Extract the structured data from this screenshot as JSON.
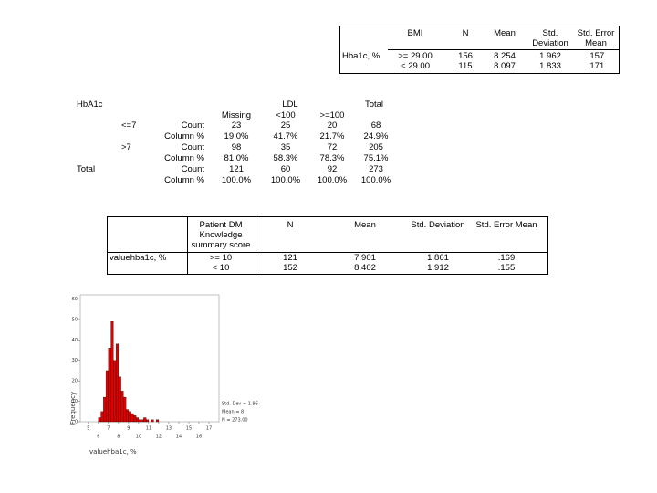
{
  "bmi_table": {
    "group_variable": "BMI",
    "row_label": "Hba1c, %",
    "columns": [
      "N",
      "Mean",
      "Std. Deviation",
      "Std. Error Mean"
    ],
    "rows": [
      {
        "group": ">= 29.00",
        "cells": [
          "156",
          "8.254",
          "1.962",
          ".157"
        ]
      },
      {
        "group": "< 29.00",
        "cells": [
          "115",
          "8.097",
          "1.833",
          ".171"
        ]
      }
    ]
  },
  "crosstab": {
    "row_variable": "HbA1c",
    "column_variable": "LDL",
    "columns": [
      "Missing",
      "<100",
      ">=100"
    ],
    "total_label": "Total",
    "rows": [
      {
        "group": "<=7",
        "stats": [
          {
            "label": "Count",
            "cells": [
              "23",
              "25",
              "20",
              "68"
            ]
          },
          {
            "label": "Column %",
            "cells": [
              "19.0%",
              "41.7%",
              "21.7%",
              "24.9%"
            ]
          }
        ]
      },
      {
        "group": ">7",
        "stats": [
          {
            "label": "Count",
            "cells": [
              "98",
              "35",
              "72",
              "205"
            ]
          },
          {
            "label": "Column %",
            "cells": [
              "81.0%",
              "58.3%",
              "78.3%",
              "75.1%"
            ]
          }
        ]
      },
      {
        "group": "Total",
        "stats": [
          {
            "label": "Count",
            "cells": [
              "121",
              "60",
              "92",
              "273"
            ]
          },
          {
            "label": "Column %",
            "cells": [
              "100.0%",
              "100.0%",
              "100.0%",
              "100.0%"
            ]
          }
        ]
      }
    ]
  },
  "knowledge_table": {
    "group_variable": "Patient DM Knowledge summary score",
    "row_label": "valuehba1c, %",
    "columns": [
      "N",
      "Mean",
      "Std. Deviation",
      "Std. Error Mean"
    ],
    "rows": [
      {
        "group": ">= 10",
        "cells": [
          "121",
          "7.901",
          "1.861",
          ".169"
        ]
      },
      {
        "group": "< 10",
        "cells": [
          "152",
          "8.402",
          "1.912",
          ".155"
        ]
      }
    ]
  },
  "chart_data": {
    "type": "histogram",
    "xlabel": "valuehba1c, %",
    "ylabel": "Frequency",
    "color": "#e00000",
    "bins": [
      6,
      6.25,
      6.5,
      6.75,
      7,
      7.25,
      7.5,
      7.75,
      8,
      8.25,
      8.5,
      8.75,
      9,
      9.25,
      9.5,
      9.75,
      10,
      10.25,
      10.5,
      10.75,
      11,
      11.25,
      11.5,
      11.75,
      12
    ],
    "values": [
      2,
      5,
      12,
      25,
      36,
      49,
      30,
      38,
      22,
      15,
      12,
      6,
      5,
      4,
      3,
      2,
      1,
      1,
      2,
      1,
      0,
      1,
      0,
      1
    ],
    "xlim": [
      4.2,
      18
    ],
    "ylim": [
      0,
      62
    ],
    "xticks": [
      5,
      6,
      7,
      8,
      9,
      10,
      11,
      12,
      13,
      14,
      15,
      16,
      17
    ],
    "yticks": [
      0,
      10,
      20,
      30,
      40,
      50,
      60
    ],
    "annotations": [
      "Std. Dev = 1.96",
      "Mean = 8",
      "N = 273.00"
    ]
  }
}
